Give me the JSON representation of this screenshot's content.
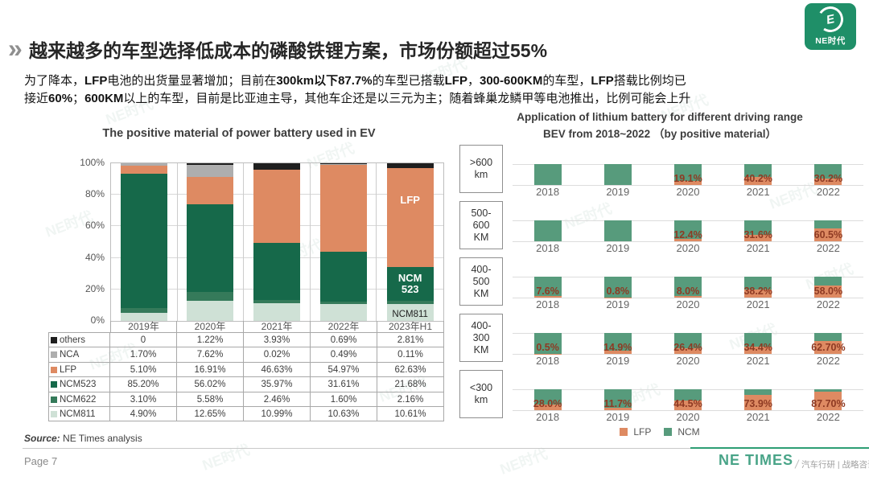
{
  "slide": {
    "chevron": "»",
    "title": "越来越多的车型选择低成本的磷酸铁锂方案，市场份额超过55%",
    "body_lines": [
      [
        {
          "t": "为了降本，"
        },
        {
          "t": "LFP",
          "b": 1
        },
        {
          "t": "电池的出货量显著增加；目前在"
        },
        {
          "t": "300km以下87.7%",
          "b": 1
        },
        {
          "t": "的车型已搭载"
        },
        {
          "t": "LFP",
          "b": 1
        },
        {
          "t": "，"
        },
        {
          "t": "300-600KM",
          "b": 1
        },
        {
          "t": "的车型，"
        },
        {
          "t": "LFP",
          "b": 1
        },
        {
          "t": "搭载比例均已"
        }
      ],
      [
        {
          "t": "接近"
        },
        {
          "t": "60%",
          "b": 1
        },
        {
          "t": "；"
        },
        {
          "t": "600KM",
          "b": 1
        },
        {
          "t": "以上的车型，目前是比亚迪主导，其他车企还是以三元为主；随着蜂巢龙鳞甲等电池推出，比例可能会上升"
        }
      ]
    ],
    "logo": {
      "bg_color": "#1f8f68",
      "emblem": "E",
      "text": "NE时代"
    },
    "source": {
      "prefix": "Source:",
      "text": " NE Times analysis"
    },
    "page_label": "Page 7",
    "footer": {
      "brand": "NE TIMES",
      "tagline": "汽车行研 | 战略咨询",
      "brand_color": "#49a488",
      "line_color": "#2e9e74"
    },
    "watermark": "NE时代"
  },
  "chart_data": [
    {
      "id": "left",
      "type": "bar",
      "stacked": true,
      "title": "The positive material of power battery used in EV",
      "categories": [
        "2019年",
        "2020年",
        "2021年",
        "2022年",
        "2023年H1"
      ],
      "stack_order_bottom_to_top": [
        "NCM811",
        "NCM622",
        "NCM523",
        "LFP",
        "NCA",
        "others"
      ],
      "series": [
        {
          "name": "others",
          "color": "#1f1f1f",
          "values": [
            0,
            1.22,
            3.93,
            0.69,
            2.81
          ]
        },
        {
          "name": "NCA",
          "color": "#aeaeae",
          "values": [
            1.7,
            7.62,
            0.02,
            0.49,
            0.11
          ]
        },
        {
          "name": "LFP",
          "color": "#de8a62",
          "values": [
            5.1,
            16.91,
            46.63,
            54.97,
            62.63
          ]
        },
        {
          "name": "NCM523",
          "color": "#16694a",
          "values": [
            85.2,
            56.02,
            35.97,
            31.61,
            21.68
          ]
        },
        {
          "name": "NCM622",
          "color": "#357a5a",
          "values": [
            3.1,
            5.58,
            2.46,
            1.6,
            2.16
          ]
        },
        {
          "name": "NCM811",
          "color": "#cfe1d6",
          "values": [
            4.9,
            12.65,
            10.99,
            10.63,
            10.61
          ]
        }
      ],
      "ylim": [
        0,
        100
      ],
      "yticks": [
        "100%",
        "80%",
        "60%",
        "40%",
        "20%",
        "0%"
      ],
      "grid": true,
      "bar_labels": {
        "lfp": "LFP",
        "ncm523": "NCM\n523",
        "ncm811": "NCM811"
      },
      "table_rows": [
        {
          "name": "others",
          "color": "#1f1f1f",
          "cells": [
            "0",
            "1.22%",
            "3.93%",
            "0.69%",
            "2.81%"
          ]
        },
        {
          "name": "NCA",
          "color": "#aeaeae",
          "cells": [
            "1.70%",
            "7.62%",
            "0.02%",
            "0.49%",
            "0.11%"
          ]
        },
        {
          "name": "LFP",
          "color": "#de8a62",
          "cells": [
            "5.10%",
            "16.91%",
            "46.63%",
            "54.97%",
            "62.63%"
          ]
        },
        {
          "name": "NCM523",
          "color": "#16694a",
          "cells": [
            "85.20%",
            "56.02%",
            "35.97%",
            "31.61%",
            "21.68%"
          ]
        },
        {
          "name": "NCM622",
          "color": "#357a5a",
          "cells": [
            "3.10%",
            "5.58%",
            "2.46%",
            "1.60%",
            "2.16%"
          ]
        },
        {
          "name": "NCM811",
          "color": "#cfe1d6",
          "cells": [
            "4.90%",
            "12.65%",
            "10.99%",
            "10.63%",
            "10.61%"
          ]
        }
      ]
    },
    {
      "id": "right",
      "type": "bar",
      "stacked": true,
      "normalized": true,
      "title_line1": "Application of lithium battery for different driving range",
      "title_line2": "BEV from 2018~2022 （by positive material）",
      "years": [
        "2018",
        "2019",
        "2020",
        "2021",
        "2022"
      ],
      "rows": [
        {
          "range_label": ">600\nkm",
          "lfp_pct": [
            0,
            0,
            19.1,
            40.2,
            30.2
          ],
          "labels": [
            "",
            "",
            "19.1%",
            "40.2%",
            "30.2%"
          ]
        },
        {
          "range_label": "500-\n600\nKM",
          "lfp_pct": [
            0,
            0,
            12.4,
            31.6,
            60.5
          ],
          "labels": [
            "",
            "",
            "12.4%",
            "31.6%",
            "60.5%"
          ]
        },
        {
          "range_label": "400-\n500\nKM",
          "lfp_pct": [
            7.6,
            0.8,
            8.0,
            38.2,
            58.0
          ],
          "labels": [
            "7.6%",
            "0.8%",
            "8.0%",
            "38.2%",
            "58.0%"
          ]
        },
        {
          "range_label": "400-\n300\nKM",
          "lfp_pct": [
            0.5,
            14.9,
            26.4,
            34.4,
            62.7
          ],
          "labels": [
            "0.5%",
            "14.9%",
            "26.4%",
            "34.4%",
            "62.70%"
          ]
        },
        {
          "range_label": "<300\nkm",
          "lfp_pct": [
            28.0,
            11.7,
            44.5,
            73.9,
            87.7
          ],
          "labels": [
            "28.0%",
            "11.7%",
            "44.5%",
            "73.9%",
            "87.70%"
          ]
        }
      ],
      "colors": {
        "lfp": "#de8a62",
        "ncm": "#579b7c",
        "label": "#8e3a23"
      },
      "legend": [
        {
          "label": "LFP",
          "color": "#de8a62"
        },
        {
          "label": "NCM",
          "color": "#579b7c"
        }
      ]
    }
  ]
}
